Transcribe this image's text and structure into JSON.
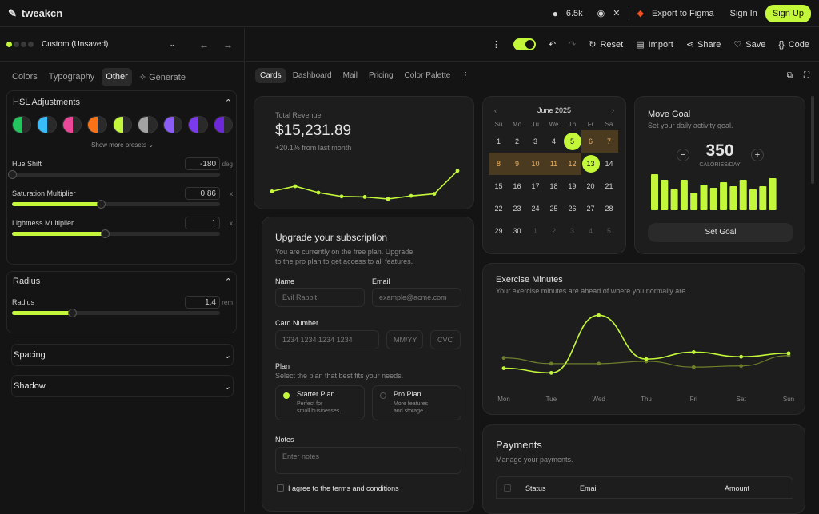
{
  "topbar": {
    "app_name": "tweakcn",
    "github_stars": "6.5k",
    "export_label": "Export to Figma",
    "sign_in": "Sign In",
    "sign_up": "Sign Up"
  },
  "theme": {
    "name": "Custom (Unsaved)"
  },
  "left_tabs": [
    "Colors",
    "Typography",
    "Other",
    "Generate"
  ],
  "hsl": {
    "title": "HSL Adjustments",
    "show_more": "Show more presets",
    "swatch_colors": [
      "#22c55e",
      "#38bdf8",
      "#ec4899",
      "#f97316",
      "#c3f73a",
      "#a3a3a3",
      "#8b5cf6",
      "#7c3aed",
      "#6d28d9"
    ],
    "hue": {
      "label": "Hue Shift",
      "value": "-180",
      "unit": "deg",
      "fraction": 0.0
    },
    "sat": {
      "label": "Saturation Multiplier",
      "value": "0.86",
      "unit": "x",
      "fraction": 0.43
    },
    "light": {
      "label": "Lightness Multiplier",
      "value": "1",
      "unit": "x",
      "fraction": 0.45
    }
  },
  "radius": {
    "title": "Radius",
    "label": "Radius",
    "value": "1.4",
    "unit": "rem",
    "fraction": 0.29
  },
  "spacing_title": "Spacing",
  "shadow_title": "Shadow",
  "toolbar": {
    "reset": "Reset",
    "import": "Import",
    "share": "Share",
    "save": "Save",
    "code": "Code"
  },
  "content_tabs": [
    "Cards",
    "Dashboard",
    "Mail",
    "Pricing",
    "Color Palette"
  ],
  "revenue": {
    "label": "Total Revenue",
    "amount": "$15,231.89",
    "change": "+20.1% from last month",
    "points": [
      3,
      5,
      2.5,
      1,
      0.8,
      0,
      1.2,
      2,
      11
    ]
  },
  "calendar": {
    "month": "June 2025",
    "weekdays": [
      "Su",
      "Mo",
      "Tu",
      "We",
      "Th",
      "Fr",
      "Sa"
    ],
    "weeks": [
      [
        "1",
        "2",
        "3",
        "4",
        "5",
        "6",
        "7"
      ],
      [
        "8",
        "9",
        "10",
        "11",
        "12",
        "13",
        "14"
      ],
      [
        "15",
        "16",
        "17",
        "18",
        "19",
        "20",
        "21"
      ],
      [
        "22",
        "23",
        "24",
        "25",
        "26",
        "27",
        "28"
      ],
      [
        "29",
        "30",
        "1",
        "2",
        "3",
        "4",
        "5"
      ]
    ]
  },
  "goal": {
    "title": "Move Goal",
    "subtitle": "Set your daily activity goal.",
    "value": "350",
    "unit": "CALORIES/DAY",
    "button": "Set Goal",
    "bars": [
      45,
      38,
      26,
      38,
      22,
      32,
      28,
      35,
      30,
      38,
      26,
      30,
      40
    ]
  },
  "subscription": {
    "title": "Upgrade your subscription",
    "desc1": "You are currently on the free plan. Upgrade",
    "desc2": "to the pro plan to get access to all features.",
    "name_label": "Name",
    "name_value": "Evil Rabbit",
    "email_label": "Email",
    "email_placeholder": "example@acme.com",
    "card_label": "Card Number",
    "card_placeholder": "1234 1234 1234 1234",
    "mmyy": "MM/YY",
    "cvc": "CVC",
    "plan_label": "Plan",
    "plan_desc": "Select the plan that best fits your needs.",
    "starter": {
      "name": "Starter Plan",
      "desc1": "Perfect for",
      "desc2": "small businesses."
    },
    "pro": {
      "name": "Pro Plan",
      "desc1": "More features",
      "desc2": "and storage."
    },
    "notes_label": "Notes",
    "notes_placeholder": "Enter notes",
    "terms": "I agree to the terms and conditions"
  },
  "exercise": {
    "title": "Exercise Minutes",
    "subtitle": "Your exercise minutes are ahead of where you normally are.",
    "days": [
      "Mon",
      "Tue",
      "Wed",
      "Thu",
      "Fri",
      "Sat",
      "Sun"
    ],
    "current": [
      20,
      12,
      112,
      36,
      48,
      40,
      46
    ],
    "average": [
      38,
      28,
      28,
      32,
      22,
      24,
      42
    ]
  },
  "payments": {
    "title": "Payments",
    "subtitle": "Manage your payments.",
    "col_status": "Status",
    "col_email": "Email",
    "col_amount": "Amount"
  }
}
